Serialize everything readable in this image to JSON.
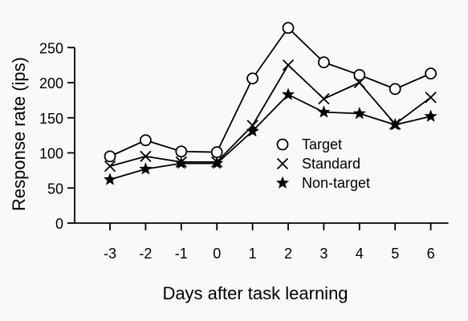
{
  "chart_data": {
    "type": "line",
    "title": "",
    "xlabel": "Days after task learning",
    "ylabel": "Response rate (ips)",
    "x": [
      -3,
      -2,
      -1,
      0,
      1,
      2,
      3,
      4,
      5,
      6
    ],
    "x_tick_labels": [
      "-3",
      "-2",
      "-1",
      "0",
      "1",
      "2",
      "3",
      "4",
      "5",
      "6"
    ],
    "y_ticks": [
      0,
      50,
      100,
      150,
      200,
      250
    ],
    "y_tick_labels": [
      "0",
      "50",
      "100",
      "150",
      "200",
      "250"
    ],
    "ylim": [
      0,
      275
    ],
    "grid": false,
    "legend_position": "center-right",
    "series": [
      {
        "name": "Target",
        "marker": "circle",
        "values": [
          95,
          118,
          102,
          101,
          206,
          278,
          229,
          211,
          191,
          213
        ]
      },
      {
        "name": "Standard",
        "marker": "x",
        "values": [
          81,
          95,
          87,
          87,
          139,
          225,
          177,
          200,
          141,
          179
        ]
      },
      {
        "name": "Non-target",
        "marker": "star",
        "values": [
          62,
          77,
          85,
          85,
          131,
          183,
          158,
          156,
          140,
          152
        ]
      }
    ]
  }
}
